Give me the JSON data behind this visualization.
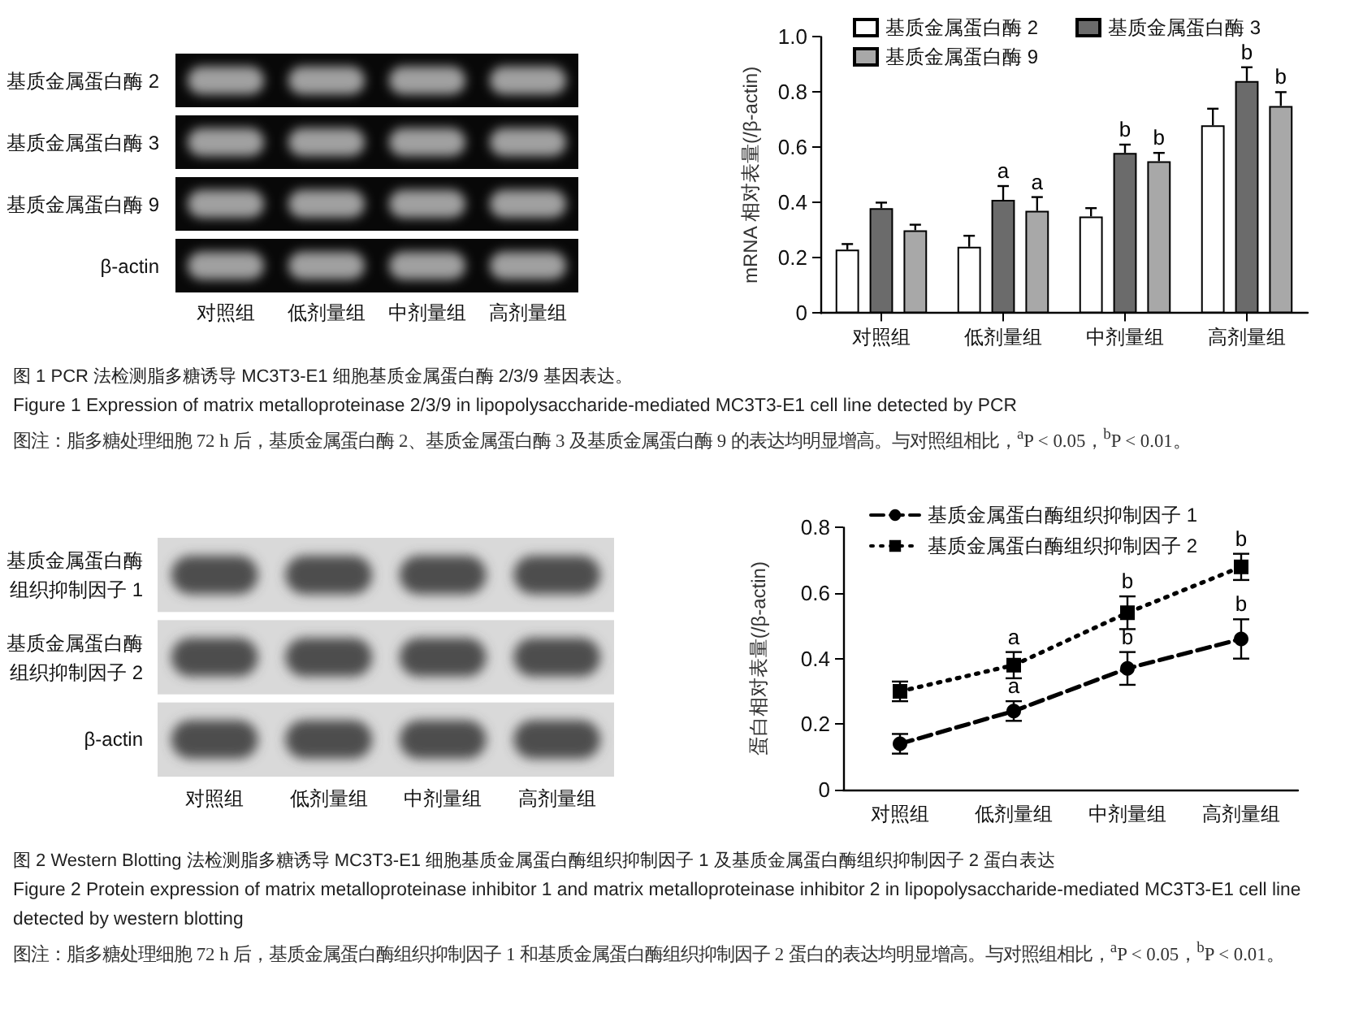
{
  "chart_data": [
    {
      "type": "other",
      "title": "图 1 PCR 法检测脂多糖诱导 MC3T3-E1 细胞基质金属蛋白酶 2/3/9 基因表达。",
      "subtitle": "Figure 1 Expression of matrix metalloproteinase 2/3/9 in lipopolysaccharide-mediated MC3T3-E1 cell line detected by PCR",
      "annotations": [
        "图注：脂多糖处理细胞 72 h 后，基质金属蛋白酶 2、基质金属蛋白酶 3 及基质金属蛋白酶 9 的表达均明显增高。与对照组相比，$^{a}$P < 0.05，$^{b}$P < 0.01。"
      ],
      "categories": [
        "对照组",
        "低剂量组",
        "中剂量组",
        "高剂量组"
      ],
      "y_categories": [
        "基质金属蛋白酶 2",
        "基质金属蛋白酶 3",
        "基质金属蛋白酶 9",
        "β-actin"
      ]
    },
    {
      "type": "bar",
      "ylabel": "mRNA 相对表量(/β-actin)",
      "categories": [
        "对照组",
        "低剂量组",
        "中剂量组",
        "高剂量组"
      ],
      "series": [
        {
          "name": "基质金属蛋白酶 2",
          "color": "#ffffff",
          "values": [
            0.23,
            0.24,
            0.35,
            0.68
          ],
          "errors": [
            0.02,
            0.04,
            0.03,
            0.06
          ]
        },
        {
          "name": "基质金属蛋白酶 3",
          "color": "#6b6b6b",
          "values": [
            0.38,
            0.41,
            0.58,
            0.84
          ],
          "errors": [
            0.02,
            0.05,
            0.03,
            0.05
          ],
          "value_labels": [
            null,
            "a",
            "b",
            "b"
          ]
        },
        {
          "name": "基质金属蛋白酶 9",
          "color": "#a8a8a8",
          "values": [
            0.3,
            0.37,
            0.55,
            0.75
          ],
          "errors": [
            0.02,
            0.05,
            0.03,
            0.05
          ],
          "value_labels": [
            null,
            "a",
            "b",
            "b"
          ]
        }
      ],
      "ylim": [
        0,
        1
      ],
      "yticks": [
        0,
        0.2,
        0.4,
        0.6,
        0.8,
        {
          "value": 1,
          "label": "1.0"
        }
      ],
      "grid": false,
      "legend": "top"
    },
    {
      "type": "other",
      "categories": [
        "对照组",
        "低剂量组",
        "中剂量组",
        "高剂量组"
      ],
      "y_categories": [
        "基质金属蛋白酶组织抑制因子 1",
        "基质金属蛋白酶组织抑制因子 2",
        "β-actin"
      ]
    },
    {
      "type": "line",
      "title": "图 2 Western Blotting 法检测脂多糖诱导 MC3T3-E1 细胞基质金属蛋白酶组织抑制因子 1 及基质金属蛋白酶组织抑制因子 2 蛋白表达",
      "subtitle": "Figure 2 Protein expression of matrix metalloproteinase inhibitor 1 and matrix metalloproteinase inhibitor 2 in lipopolysaccharide-mediated MC3T3-E1 cell line detected by western blotting",
      "annotations": [
        "图注：脂多糖处理细胞 72 h 后，基质金属蛋白酶组织抑制因子 1 和基质金属蛋白酶组织抑制因子 2 蛋白的表达均明显增高。与对照组相比，$^{a}$P < 0.05，$^{b}$P < 0.01。"
      ],
      "ylabel": "蛋白相对表量(/β-actin)",
      "categories": [
        "对照组",
        "低剂量组",
        "中剂量组",
        "高剂量组"
      ],
      "series": [
        {
          "name": "基质金属蛋白酶组织抑制因子 1",
          "color": "#000000",
          "values": [
            0.14,
            0.24,
            0.37,
            0.46
          ],
          "errors": [
            0.03,
            0.03,
            0.05,
            0.06
          ],
          "value_labels": [
            null,
            "a",
            "b",
            "b"
          ],
          "marker": "circle",
          "line_style": "dashed"
        },
        {
          "name": "基质金属蛋白酶组织抑制因子 2",
          "color": "#000000",
          "values": [
            0.3,
            0.38,
            0.54,
            0.68
          ],
          "errors": [
            0.03,
            0.04,
            0.05,
            0.04
          ],
          "value_labels": [
            null,
            "a",
            "b",
            "b"
          ],
          "marker": "square",
          "line_style": "dotted"
        }
      ],
      "ylim": [
        0,
        0.8
      ],
      "yticks": [
        0,
        0.2,
        0.4,
        0.6,
        0.8
      ],
      "grid": false,
      "legend": "top left"
    }
  ]
}
